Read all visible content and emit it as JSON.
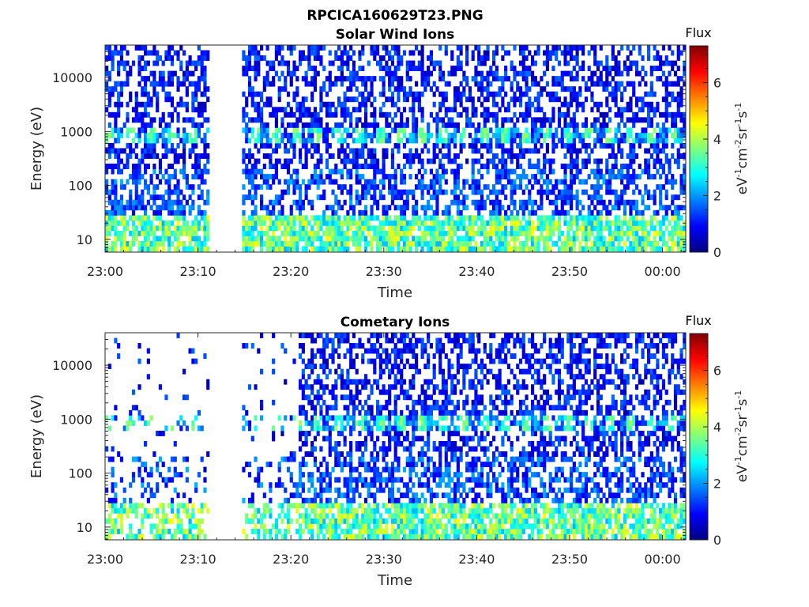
{
  "figure_title": "RPCICA160629T23.PNG",
  "colors": {
    "colormap": [
      "#00007f",
      "#0000ff",
      "#007fff",
      "#00ffff",
      "#7fff7f",
      "#ffff00",
      "#ff7f00",
      "#ff0000",
      "#7f0000"
    ],
    "axis": "#262626",
    "background": "#ffffff"
  },
  "chart_data": [
    {
      "type": "heatmap",
      "title": "Solar Wind Ions",
      "xlabel": "Time",
      "ylabel": "Energy (eV)",
      "x_tick_labels": [
        "23:00",
        "23:10",
        "23:20",
        "23:30",
        "23:40",
        "23:50",
        "00:00"
      ],
      "x_tick_minutes": [
        0,
        10,
        20,
        30,
        40,
        50,
        60
      ],
      "xlim_minutes": [
        0,
        62.5
      ],
      "y_scale": "log",
      "ylim": [
        5.8,
        40000
      ],
      "y_tick_labels": [
        "10",
        "100",
        "1000",
        "10000"
      ],
      "y_tick_values": [
        10,
        100,
        1000,
        10000
      ],
      "colorbar": {
        "title": "Flux",
        "label": "eV-1cm-2sr-1s-1",
        "range": [
          0,
          7.3
        ],
        "tick_labels": [
          "0",
          "2",
          "4",
          "6"
        ],
        "tick_values": [
          0,
          2,
          4,
          6
        ]
      },
      "data_gaps_minutes": [
        [
          11.2,
          14.5
        ]
      ],
      "features": [
        {
          "energy_eV": 800,
          "level": 3.9,
          "note": "enhanced band near 800 eV"
        },
        {
          "energy_eV": 10,
          "level": 3.5,
          "note": "enhanced flux at lowest energies"
        }
      ],
      "background_level": 1.0
    },
    {
      "type": "heatmap",
      "title": "Cometary Ions",
      "xlabel": "Time",
      "ylabel": "Energy (eV)",
      "x_tick_labels": [
        "23:00",
        "23:10",
        "23:20",
        "23:30",
        "23:40",
        "23:50",
        "00:00"
      ],
      "x_tick_minutes": [
        0,
        10,
        20,
        30,
        40,
        50,
        60
      ],
      "xlim_minutes": [
        0,
        62.5
      ],
      "y_scale": "log",
      "ylim": [
        5.8,
        40000
      ],
      "y_tick_labels": [
        "10",
        "100",
        "1000",
        "10000"
      ],
      "y_tick_values": [
        10,
        100,
        1000,
        10000
      ],
      "colorbar": {
        "title": "Flux",
        "label": "eV-1cm-2sr-1s-1",
        "range": [
          0,
          7.3
        ],
        "tick_labels": [
          "0",
          "2",
          "4",
          "6"
        ],
        "tick_values": [
          0,
          2,
          4,
          6
        ]
      },
      "data_gaps_minutes": [
        [
          11.2,
          14.5
        ]
      ],
      "sparse_until_minute": 20.8,
      "features": [
        {
          "energy_eV": 800,
          "level": 3.9,
          "note": "enhanced band near 800 eV after 23:21"
        },
        {
          "energy_eV": 10,
          "level": 4.2,
          "note": "enhanced flux at lowest energies"
        }
      ],
      "background_level": 1.0
    }
  ]
}
